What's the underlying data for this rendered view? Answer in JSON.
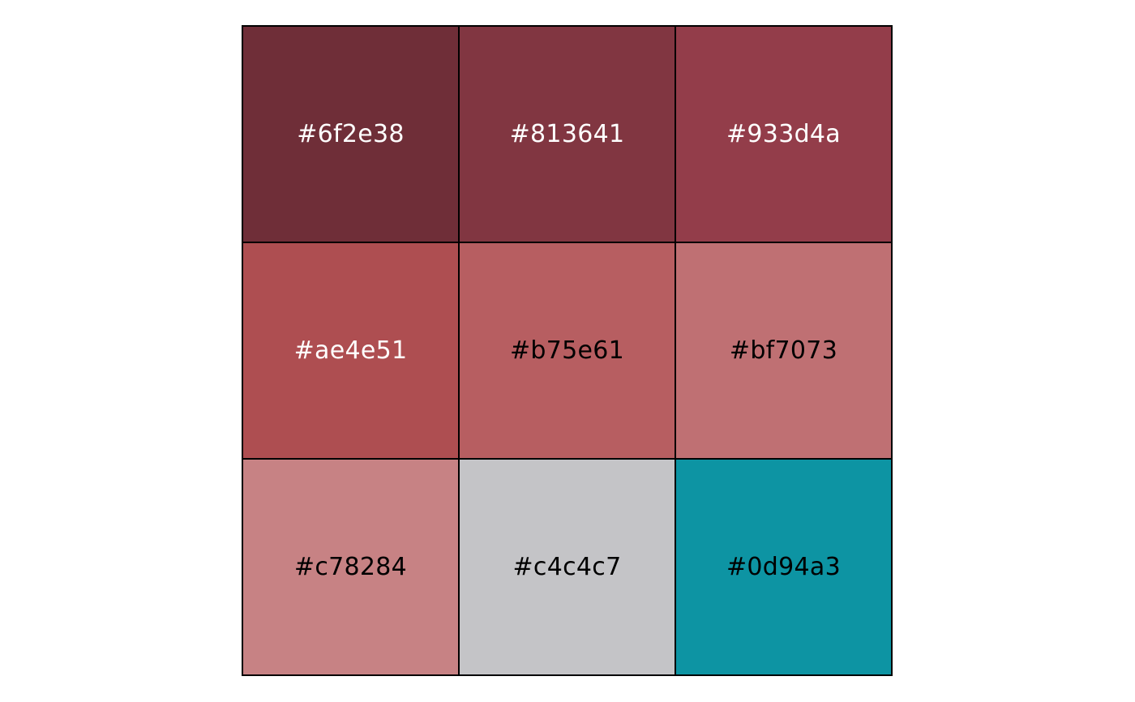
{
  "swatches": [
    {
      "label": "#6f2e38",
      "color": "#6f2e38",
      "text_color": "#ffffff"
    },
    {
      "label": "#813641",
      "color": "#813641",
      "text_color": "#ffffff"
    },
    {
      "label": "#933d4a",
      "color": "#933d4a",
      "text_color": "#ffffff"
    },
    {
      "label": "#ae4e51",
      "color": "#ae4e51",
      "text_color": "#ffffff"
    },
    {
      "label": "#b75e61",
      "color": "#b75e61",
      "text_color": "#000000"
    },
    {
      "label": "#bf7073",
      "color": "#bf7073",
      "text_color": "#000000"
    },
    {
      "label": "#c78284",
      "color": "#c78284",
      "text_color": "#000000"
    },
    {
      "label": "#c4c4c7",
      "color": "#c4c4c7",
      "text_color": "#000000"
    },
    {
      "label": "#0d94a3",
      "color": "#0d94a3",
      "text_color": "#000000"
    }
  ]
}
